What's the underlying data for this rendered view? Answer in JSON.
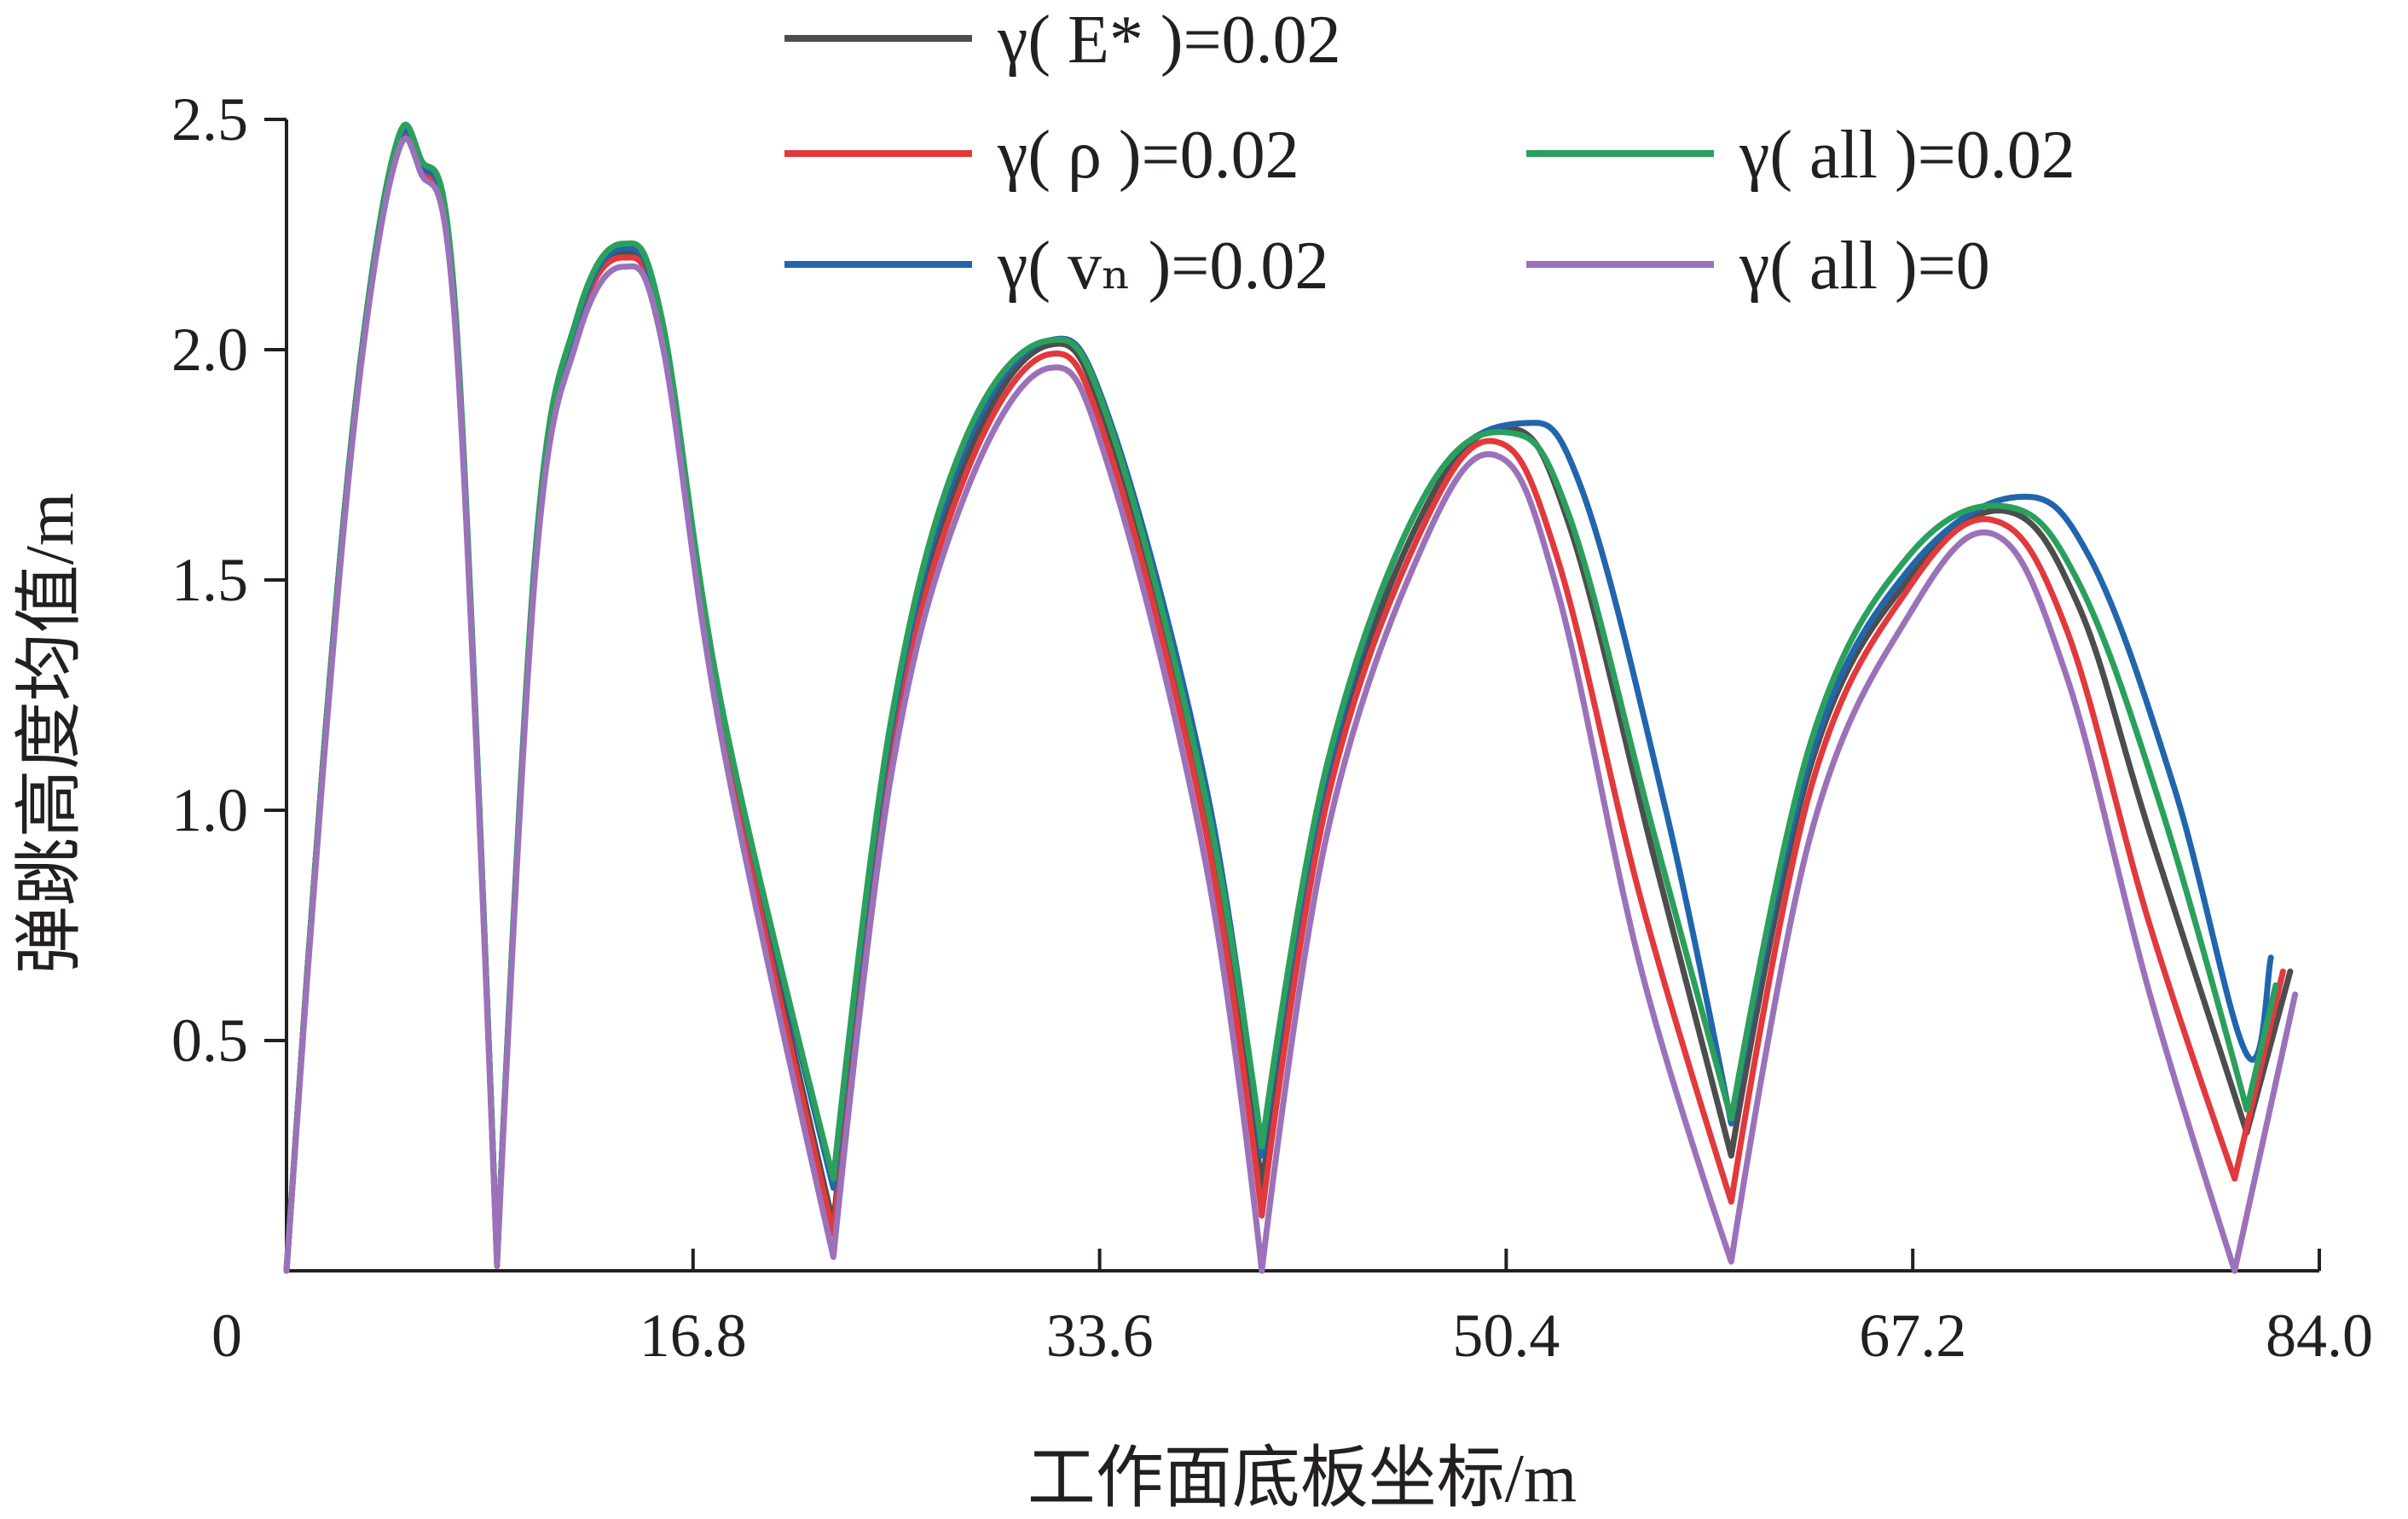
{
  "chart_data": {
    "type": "line",
    "xlabel": "工作面底板坐标/m",
    "ylabel": "弹跳高度均值/m",
    "xlim": [
      0,
      84
    ],
    "ylim": [
      0,
      2.5
    ],
    "x_ticks": [
      "0",
      "16.8",
      "33.6",
      "50.4",
      "67.2",
      "84.0"
    ],
    "y_ticks": [
      "0.5",
      "1.0",
      "1.5",
      "2.0",
      "2.5"
    ],
    "grid": false,
    "legend_position": "top",
    "series": [
      {
        "name": "γ( E* )=0.02",
        "color": "#4d4d4d",
        "points": [
          [
            0,
            0
          ],
          [
            1.5,
            1.1
          ],
          [
            3,
            1.95
          ],
          [
            4.5,
            2.42
          ],
          [
            5.5,
            2.4
          ],
          [
            7,
            2.05
          ],
          [
            8.7,
            0.02
          ],
          [
            10.3,
            1.55
          ],
          [
            12,
            2.05
          ],
          [
            13.9,
            2.21
          ],
          [
            15.5,
            2.05
          ],
          [
            18,
            1.2
          ],
          [
            22.6,
            0.1
          ],
          [
            25,
            1.15
          ],
          [
            28,
            1.75
          ],
          [
            31.5,
            2.01
          ],
          [
            34,
            1.82
          ],
          [
            38,
            1.0
          ],
          [
            40.3,
            0.18
          ],
          [
            43,
            1.05
          ],
          [
            47,
            1.65
          ],
          [
            50.5,
            1.83
          ],
          [
            53,
            1.62
          ],
          [
            56.5,
            0.9
          ],
          [
            59.7,
            0.25
          ],
          [
            63,
            1.1
          ],
          [
            67,
            1.5
          ],
          [
            71,
            1.65
          ],
          [
            74,
            1.45
          ],
          [
            77,
            0.95
          ],
          [
            81,
            0.3
          ],
          [
            82.8,
            0.65
          ]
        ]
      },
      {
        "name": "γ( ρ )=0.02",
        "color": "#e2393c",
        "points": [
          [
            0,
            0
          ],
          [
            1.5,
            1.1
          ],
          [
            3,
            1.95
          ],
          [
            4.5,
            2.42
          ],
          [
            5.5,
            2.4
          ],
          [
            7,
            2.05
          ],
          [
            8.7,
            0.02
          ],
          [
            10.3,
            1.55
          ],
          [
            12,
            2.05
          ],
          [
            13.9,
            2.2
          ],
          [
            15.5,
            2.04
          ],
          [
            18,
            1.18
          ],
          [
            22.6,
            0.08
          ],
          [
            25,
            1.12
          ],
          [
            28,
            1.72
          ],
          [
            31.5,
            1.99
          ],
          [
            34,
            1.78
          ],
          [
            38,
            0.95
          ],
          [
            40.3,
            0.12
          ],
          [
            43,
            1.02
          ],
          [
            47,
            1.62
          ],
          [
            50,
            1.8
          ],
          [
            52.5,
            1.55
          ],
          [
            56,
            0.8
          ],
          [
            59.7,
            0.15
          ],
          [
            63,
            1.05
          ],
          [
            67,
            1.48
          ],
          [
            70.5,
            1.63
          ],
          [
            73.5,
            1.4
          ],
          [
            77,
            0.75
          ],
          [
            80.5,
            0.2
          ],
          [
            82.5,
            0.65
          ]
        ]
      },
      {
        "name": "γ( vₙ )=0.02",
        "color": "#2166ac",
        "points": [
          [
            0,
            0
          ],
          [
            1.5,
            1.1
          ],
          [
            3,
            1.95
          ],
          [
            4.5,
            2.43
          ],
          [
            5.5,
            2.41
          ],
          [
            7,
            2.06
          ],
          [
            8.7,
            0.02
          ],
          [
            10.3,
            1.56
          ],
          [
            12,
            2.06
          ],
          [
            13.9,
            2.22
          ],
          [
            15.5,
            2.06
          ],
          [
            18,
            1.22
          ],
          [
            22.6,
            0.18
          ],
          [
            25,
            1.18
          ],
          [
            28,
            1.78
          ],
          [
            31.5,
            2.02
          ],
          [
            34,
            1.85
          ],
          [
            38,
            1.05
          ],
          [
            40.3,
            0.25
          ],
          [
            43,
            1.08
          ],
          [
            47,
            1.68
          ],
          [
            51,
            1.84
          ],
          [
            53.5,
            1.7
          ],
          [
            57,
            1.0
          ],
          [
            59.7,
            0.32
          ],
          [
            63,
            1.12
          ],
          [
            67,
            1.52
          ],
          [
            71.5,
            1.68
          ],
          [
            74.5,
            1.55
          ],
          [
            78,
            1.05
          ],
          [
            81,
            0.47
          ],
          [
            82,
            0.68
          ]
        ]
      },
      {
        "name": "γ( all )=0.02",
        "color": "#2ba05c",
        "points": [
          [
            0,
            0
          ],
          [
            1.5,
            1.1
          ],
          [
            3,
            1.95
          ],
          [
            4.5,
            2.44
          ],
          [
            5.5,
            2.42
          ],
          [
            7,
            2.07
          ],
          [
            8.7,
            0.02
          ],
          [
            10.3,
            1.57
          ],
          [
            12,
            2.07
          ],
          [
            13.9,
            2.23
          ],
          [
            15.5,
            2.07
          ],
          [
            18,
            1.22
          ],
          [
            22.6,
            0.2
          ],
          [
            25,
            1.2
          ],
          [
            28,
            1.8
          ],
          [
            31.5,
            2.02
          ],
          [
            34,
            1.84
          ],
          [
            38,
            1.02
          ],
          [
            40.3,
            0.27
          ],
          [
            43,
            1.1
          ],
          [
            47,
            1.68
          ],
          [
            50.5,
            1.82
          ],
          [
            53,
            1.64
          ],
          [
            56.5,
            0.95
          ],
          [
            59.7,
            0.33
          ],
          [
            63,
            1.15
          ],
          [
            67,
            1.55
          ],
          [
            71,
            1.66
          ],
          [
            74,
            1.5
          ],
          [
            77.5,
            1.0
          ],
          [
            81,
            0.35
          ],
          [
            82.2,
            0.62
          ]
        ]
      },
      {
        "name": "γ( all )=0",
        "color": "#9b72b9",
        "points": [
          [
            0,
            0
          ],
          [
            1.5,
            1.08
          ],
          [
            3,
            1.93
          ],
          [
            4.5,
            2.41
          ],
          [
            5.5,
            2.39
          ],
          [
            7,
            2.03
          ],
          [
            8.7,
            0.01
          ],
          [
            10.3,
            1.53
          ],
          [
            12,
            2.02
          ],
          [
            13.9,
            2.18
          ],
          [
            15.5,
            2.02
          ],
          [
            18,
            1.15
          ],
          [
            22.6,
            0.03
          ],
          [
            25,
            1.08
          ],
          [
            28,
            1.68
          ],
          [
            31.5,
            1.96
          ],
          [
            34,
            1.74
          ],
          [
            38,
            0.88
          ],
          [
            40.3,
            0.0
          ],
          [
            43,
            0.95
          ],
          [
            47,
            1.58
          ],
          [
            50,
            1.77
          ],
          [
            52.5,
            1.48
          ],
          [
            56,
            0.65
          ],
          [
            59.7,
            0.02
          ],
          [
            63,
            0.95
          ],
          [
            67,
            1.42
          ],
          [
            70.5,
            1.6
          ],
          [
            73.5,
            1.3
          ],
          [
            77,
            0.6
          ],
          [
            80.5,
            0.0
          ],
          [
            83,
            0.6
          ]
        ]
      }
    ]
  }
}
